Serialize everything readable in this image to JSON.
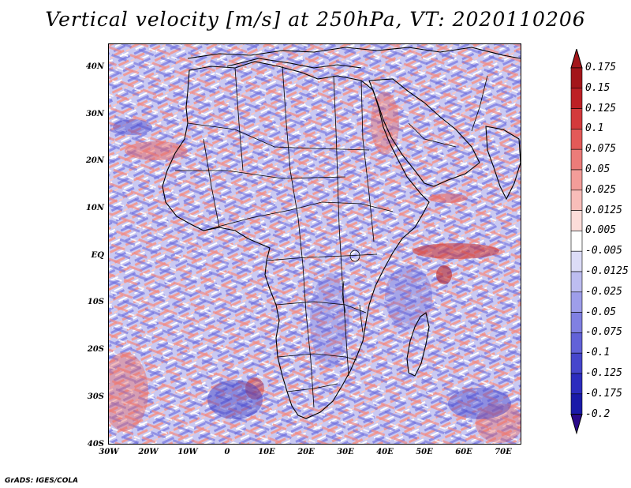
{
  "title": "Vertical velocity [m/s] at 250hPa, VT: 2020110206",
  "footer": "GrADS: IGES/COLA",
  "map": {
    "lat_ticks": [
      "40N",
      "30N",
      "20N",
      "10N",
      "EQ",
      "10S",
      "20S",
      "30S",
      "40S"
    ],
    "lon_ticks": [
      "30W",
      "20W",
      "10W",
      "0",
      "10E",
      "20E",
      "30E",
      "40E",
      "50E",
      "60E",
      "70E"
    ],
    "lat_range": [
      -40,
      45
    ],
    "lon_range": [
      -30,
      75
    ]
  },
  "colorbar": {
    "levels": [
      {
        "label": "0.175",
        "color": "#a3161a"
      },
      {
        "label": "0.15",
        "color": "#bd2025"
      },
      {
        "label": "0.125",
        "color": "#d33a3c"
      },
      {
        "label": "0.1",
        "color": "#e35a58"
      },
      {
        "label": "0.075",
        "color": "#ec7c79"
      },
      {
        "label": "0.05",
        "color": "#f39d99"
      },
      {
        "label": "0.025",
        "color": "#f8bdb9"
      },
      {
        "label": "0.0125",
        "color": "#fcdcd9"
      },
      {
        "label": "0.005",
        "color": "#ffffff"
      },
      {
        "label": "-0.005",
        "color": "#dcdcf7"
      },
      {
        "label": "-0.0125",
        "color": "#bdbdf0"
      },
      {
        "label": "-0.025",
        "color": "#9e9eea"
      },
      {
        "label": "-0.05",
        "color": "#8080e2"
      },
      {
        "label": "-0.075",
        "color": "#6262d8"
      },
      {
        "label": "-0.1",
        "color": "#4646cc"
      },
      {
        "label": "-0.125",
        "color": "#2c2cbe"
      },
      {
        "label": "-0.175",
        "color": "#1a1aa8"
      },
      {
        "label": "-0.2",
        "color": "#2a0a8a"
      }
    ],
    "top_arrow_color": "#a3161a",
    "bottom_arrow_color": "#2a0a8a"
  },
  "colors": {
    "field_positive": "#e57b7b",
    "field_negative": "#7b7bdf",
    "coastline": "#000000"
  }
}
